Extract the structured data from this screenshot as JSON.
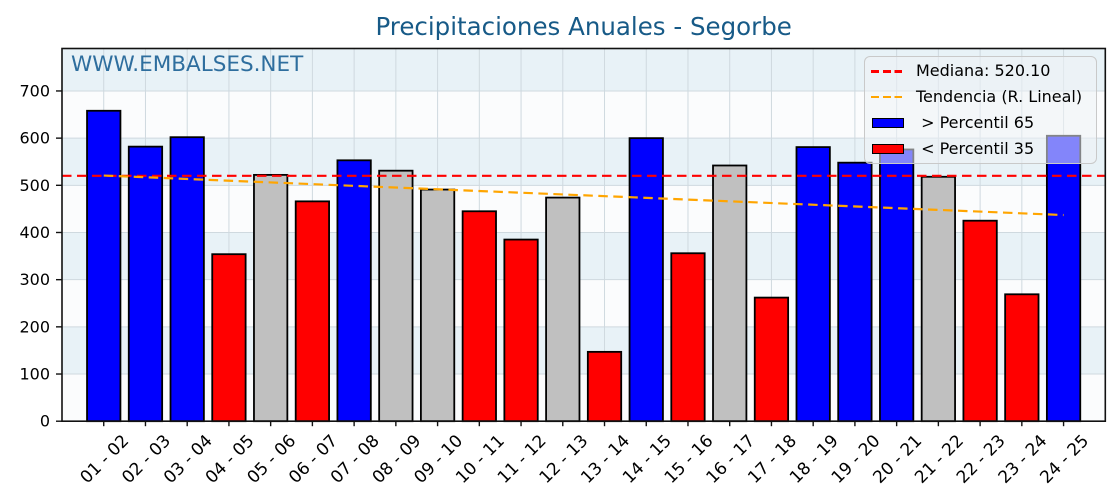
{
  "page": {
    "background": "#ffffff"
  },
  "watermark": {
    "text": "WWW.EMBALSES.NET",
    "color": "#2e6e9e"
  },
  "chart_data": {
    "type": "bar",
    "title": "Precipitaciones Anuales - Segorbe",
    "title_color": "#175a87",
    "categories": [
      "01 - 02",
      "02 - 03",
      "03 - 04",
      "04 - 05",
      "05 - 06",
      "06 - 07",
      "07 - 08",
      "08 - 09",
      "09 - 10",
      "10 - 11",
      "11 - 12",
      "12 - 13",
      "13 - 14",
      "14 - 15",
      "15 - 16",
      "16 - 17",
      "17 - 18",
      "18 - 19",
      "19 - 20",
      "20 - 21",
      "21 - 22",
      "22 - 23",
      "23 - 24",
      "24 - 25"
    ],
    "values": [
      658,
      582,
      602,
      354,
      522.1,
      466,
      553,
      531,
      491,
      445,
      385,
      474,
      147,
      600,
      356,
      542,
      262,
      581,
      548,
      576,
      518.1,
      425,
      269,
      605
    ],
    "bar_roles": [
      "above",
      "above",
      "above",
      "below",
      "mid",
      "below",
      "above",
      "mid",
      "mid",
      "below",
      "below",
      "mid",
      "below",
      "above",
      "below",
      "mid",
      "below",
      "above",
      "above",
      "above",
      "mid",
      "below",
      "below",
      "above"
    ],
    "colors": {
      "above_p65": "#0000ff",
      "below_p35": "#ff0000",
      "mid": "#c0c0c0",
      "bar_edge": "#000000",
      "median_line": "#ff0000",
      "trend_line": "#ffa500",
      "band_light": "#e8f2f7",
      "band_white": "#fbfcfd",
      "grid": "#cfd9df",
      "spine": "#111111",
      "tick_text": "#000000"
    },
    "median": 520.1,
    "ylim": [
      0,
      790
    ],
    "yticks": [
      0,
      100,
      200,
      300,
      400,
      500,
      600,
      700
    ],
    "xlabel": "",
    "ylabel": "",
    "grid": true,
    "legend_position": "upper right",
    "legend": [
      {
        "label": "Mediana: 520.10",
        "swatch": "dashed-line",
        "color": "#ff0000"
      },
      {
        "label": "Tendencia (R. Lineal)",
        "swatch": "dashed-line",
        "color": "#ffa500"
      },
      {
        "label": " > Percentil 65",
        "swatch": "rect",
        "color": "#0000ff"
      },
      {
        "label": " < Percentil 35",
        "swatch": "rect",
        "color": "#ff0000"
      }
    ]
  }
}
